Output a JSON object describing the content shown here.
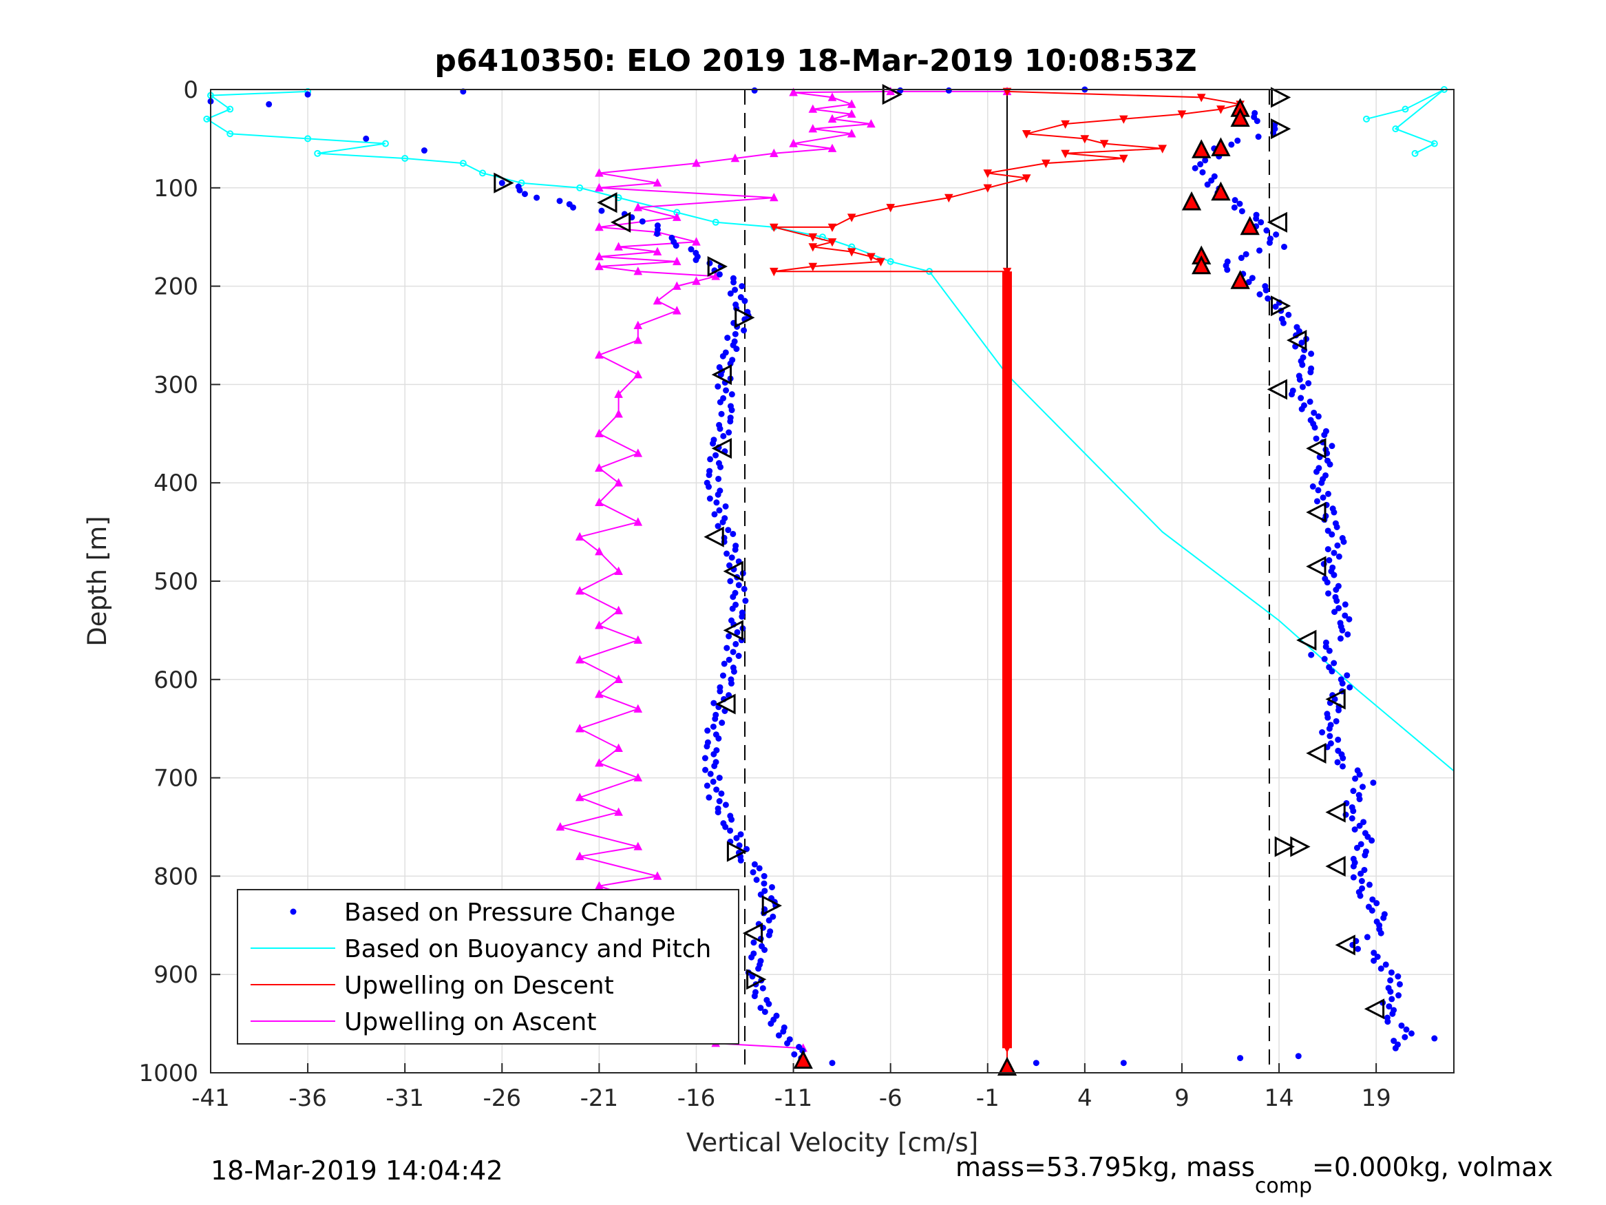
{
  "chart_data": {
    "type": "scatter",
    "title": "p6410350: ELO 2019 18-Mar-2019 10:08:53Z",
    "xlabel": "Vertical Velocity [cm/s]",
    "ylabel": "Depth [m]",
    "xlim": [
      -41,
      23
    ],
    "ylim": [
      0,
      1000
    ],
    "y_reversed": true,
    "grid": true,
    "xticks": [
      -41,
      -36,
      -31,
      -26,
      -21,
      -16,
      -11,
      -6,
      -1,
      4,
      9,
      14,
      19
    ],
    "xtick_labels": [
      "-41",
      "-36",
      "-31",
      "-26",
      "-21",
      "-16",
      "-11",
      "-6",
      "-1",
      "4",
      "9",
      "14",
      "19"
    ],
    "yticks": [
      0,
      100,
      200,
      300,
      400,
      500,
      600,
      700,
      800,
      900,
      1000
    ],
    "ytick_labels": [
      "0",
      "100",
      "200",
      "300",
      "400",
      "500",
      "600",
      "700",
      "800",
      "900",
      "1000"
    ],
    "vlines": [
      {
        "x": -13.5,
        "style": "dashed",
        "color": "#000000"
      },
      {
        "x": 13.5,
        "style": "dashed",
        "color": "#000000"
      },
      {
        "x": 0,
        "style": "solid",
        "color": "#000000"
      }
    ],
    "legend_placement": "lower-left",
    "series": [
      {
        "name": "Based on Pressure Change",
        "style": "dots",
        "color": "#0000ff",
        "descent": [
          [
            -26,
            95
          ],
          [
            -24,
            110
          ],
          [
            -22,
            120
          ],
          [
            -19,
            130
          ],
          [
            -17,
            155
          ],
          [
            -16,
            170
          ],
          [
            -15,
            180
          ],
          [
            -14,
            200
          ],
          [
            -13.6,
            230
          ],
          [
            -14.2,
            260
          ],
          [
            -14.6,
            290
          ],
          [
            -14.4,
            330
          ],
          [
            -14.8,
            360
          ],
          [
            -15.2,
            400
          ],
          [
            -14.6,
            440
          ],
          [
            -14,
            480
          ],
          [
            -13.8,
            520
          ],
          [
            -14,
            560
          ],
          [
            -14.4,
            600
          ],
          [
            -15,
            640
          ],
          [
            -15.3,
            680
          ],
          [
            -15,
            720
          ],
          [
            -14.2,
            750
          ],
          [
            -13.6,
            780
          ],
          [
            -12.6,
            800
          ],
          [
            -12.2,
            830
          ],
          [
            -12.6,
            860
          ],
          [
            -13,
            890
          ],
          [
            -13,
            910
          ],
          [
            -12,
            950
          ],
          [
            -11,
            970
          ],
          [
            -10.6,
            985
          ]
        ],
        "ascent": [
          [
            12,
            20
          ],
          [
            14,
            40
          ],
          [
            11,
            60
          ],
          [
            10,
            80
          ],
          [
            11,
            105
          ],
          [
            13,
            135
          ],
          [
            14,
            160
          ],
          [
            11,
            175
          ],
          [
            13,
            200
          ],
          [
            14,
            225
          ],
          [
            15,
            250
          ],
          [
            15.5,
            280
          ],
          [
            15,
            310
          ],
          [
            16,
            340
          ],
          [
            16.5,
            370
          ],
          [
            16,
            400
          ],
          [
            16.5,
            430
          ],
          [
            17,
            460
          ],
          [
            16.5,
            490
          ],
          [
            17,
            520
          ],
          [
            17.5,
            550
          ],
          [
            16,
            575
          ],
          [
            17.5,
            600
          ],
          [
            17,
            620
          ],
          [
            16.5,
            650
          ],
          [
            17,
            680
          ],
          [
            18.5,
            705
          ],
          [
            17.5,
            730
          ],
          [
            18.5,
            760
          ],
          [
            18,
            790
          ],
          [
            18.5,
            820
          ],
          [
            19.5,
            850
          ],
          [
            18,
            870
          ],
          [
            19.5,
            890
          ],
          [
            20,
            910
          ],
          [
            19.5,
            940
          ],
          [
            20.5,
            960
          ],
          [
            20,
            975
          ]
        ],
        "surface": [
          [
            -41,
            12
          ],
          [
            -38,
            15
          ],
          [
            -36,
            5
          ],
          [
            -33,
            50
          ],
          [
            -30,
            62
          ],
          [
            -28,
            2
          ],
          [
            -13,
            1
          ],
          [
            -5.5,
            1
          ],
          [
            -3,
            1
          ],
          [
            4,
            0
          ],
          [
            -9,
            990
          ],
          [
            1.5,
            990
          ],
          [
            6,
            990
          ],
          [
            12,
            985
          ],
          [
            15,
            983
          ],
          [
            22,
            965
          ]
        ]
      },
      {
        "name": "Based on Buoyancy and Pitch",
        "style": "line-circles",
        "color": "#00ffff",
        "points": [
          [
            -36,
            2
          ],
          [
            -41,
            6
          ],
          [
            -40,
            20
          ],
          [
            -41.2,
            30
          ],
          [
            -40,
            45
          ],
          [
            -36,
            50
          ],
          [
            -32,
            55
          ],
          [
            -35.5,
            65
          ],
          [
            -31,
            70
          ],
          [
            -28,
            75
          ],
          [
            -27,
            85
          ],
          [
            -25,
            95
          ],
          [
            -22,
            100
          ],
          [
            -20,
            110
          ],
          [
            -17,
            125
          ],
          [
            -15,
            135
          ],
          [
            -12,
            140
          ],
          [
            -9.5,
            150
          ],
          [
            -8,
            160
          ],
          [
            -6,
            175
          ],
          [
            -4,
            185
          ],
          [
            0,
            290
          ],
          [
            8,
            450
          ],
          [
            14,
            540
          ],
          [
            18,
            610
          ],
          [
            23,
            693
          ]
        ],
        "surface_points": [
          [
            18.5,
            30
          ],
          [
            20.5,
            20
          ],
          [
            22.5,
            0
          ],
          [
            20,
            40
          ],
          [
            22,
            55
          ],
          [
            21,
            65
          ]
        ]
      },
      {
        "name": "Upwelling on Descent",
        "style": "line-down-triangles",
        "color": "#ff0000",
        "points": [
          [
            0,
            2
          ],
          [
            10,
            8
          ],
          [
            12,
            15
          ],
          [
            11,
            20
          ],
          [
            9,
            25
          ],
          [
            6,
            30
          ],
          [
            3,
            35
          ],
          [
            1,
            45
          ],
          [
            4,
            50
          ],
          [
            5,
            55
          ],
          [
            8,
            60
          ],
          [
            3,
            65
          ],
          [
            6,
            70
          ],
          [
            2,
            75
          ],
          [
            -1,
            85
          ],
          [
            1,
            90
          ],
          [
            -1,
            100
          ],
          [
            -3,
            110
          ],
          [
            -6,
            120
          ],
          [
            -8,
            130
          ],
          [
            -9,
            140
          ],
          [
            -12,
            140
          ],
          [
            -10,
            150
          ],
          [
            -9,
            155
          ],
          [
            -10,
            160
          ],
          [
            -8,
            165
          ],
          [
            -7,
            170
          ],
          [
            -6.5,
            175
          ],
          [
            -10,
            180
          ],
          [
            -12,
            185
          ],
          [
            0,
            185
          ],
          [
            0,
            975
          ],
          [
            0,
            995
          ]
        ]
      },
      {
        "name": "Upwelling on Ascent",
        "style": "line-up-triangles",
        "color": "#ff00ff",
        "points": [
          [
            -10.5,
            975
          ],
          [
            -15,
            970
          ],
          [
            -18,
            960
          ],
          [
            -16,
            950
          ],
          [
            -18,
            940
          ],
          [
            -21,
            930
          ],
          [
            -19,
            920
          ],
          [
            -22,
            900
          ],
          [
            -19,
            890
          ],
          [
            -24,
            870
          ],
          [
            -20,
            860
          ],
          [
            -22,
            840
          ],
          [
            -18,
            830
          ],
          [
            -21,
            810
          ],
          [
            -18,
            800
          ],
          [
            -22,
            780
          ],
          [
            -19,
            770
          ],
          [
            -23,
            750
          ],
          [
            -20,
            735
          ],
          [
            -22,
            720
          ],
          [
            -19,
            700
          ],
          [
            -21,
            685
          ],
          [
            -20,
            670
          ],
          [
            -22,
            650
          ],
          [
            -19,
            630
          ],
          [
            -21,
            615
          ],
          [
            -20,
            600
          ],
          [
            -22,
            580
          ],
          [
            -19,
            560
          ],
          [
            -21,
            545
          ],
          [
            -20,
            530
          ],
          [
            -22,
            510
          ],
          [
            -20,
            490
          ],
          [
            -21,
            470
          ],
          [
            -22,
            455
          ],
          [
            -19,
            440
          ],
          [
            -21,
            420
          ],
          [
            -20,
            400
          ],
          [
            -21,
            385
          ],
          [
            -19,
            370
          ],
          [
            -21,
            350
          ],
          [
            -20,
            330
          ],
          [
            -20,
            310
          ],
          [
            -19,
            290
          ],
          [
            -21,
            270
          ],
          [
            -19,
            255
          ],
          [
            -19,
            240
          ],
          [
            -17,
            225
          ],
          [
            -18,
            215
          ],
          [
            -17,
            200
          ],
          [
            -16,
            195
          ],
          [
            -15,
            190
          ],
          [
            -19,
            185
          ],
          [
            -21,
            180
          ],
          [
            -17,
            175
          ],
          [
            -21,
            170
          ],
          [
            -18,
            165
          ],
          [
            -20,
            160
          ],
          [
            -16,
            155
          ],
          [
            -18,
            145
          ],
          [
            -21,
            140
          ],
          [
            -17,
            130
          ],
          [
            -19,
            120
          ],
          [
            -12,
            110
          ],
          [
            -21,
            100
          ],
          [
            -18,
            95
          ],
          [
            -21,
            85
          ],
          [
            -16,
            75
          ],
          [
            -14,
            70
          ],
          [
            -12,
            65
          ],
          [
            -9,
            60
          ],
          [
            -11,
            55
          ],
          [
            -8,
            45
          ],
          [
            -10,
            40
          ],
          [
            -7,
            35
          ],
          [
            -9,
            30
          ],
          [
            -8,
            25
          ],
          [
            -10,
            20
          ],
          [
            -8,
            15
          ],
          [
            -9,
            8
          ],
          [
            -11,
            3
          ],
          [
            -6,
            2
          ],
          [
            0,
            2
          ]
        ]
      }
    ],
    "markers": {
      "descent_triangles_right": [
        [
          -26,
          95
        ],
        [
          -15,
          180
        ],
        [
          -13.6,
          232
        ],
        [
          -12.2,
          830
        ],
        [
          -13,
          905
        ],
        [
          -6,
          5
        ],
        [
          14,
          8
        ],
        [
          14,
          40
        ],
        [
          14,
          220
        ],
        [
          14.2,
          770
        ],
        [
          15,
          770
        ],
        [
          -14,
          775
        ]
      ],
      "descent_triangles_left": [
        [
          -20.5,
          115
        ],
        [
          -19.8,
          135
        ],
        [
          -14.6,
          290
        ],
        [
          -14.6,
          365
        ],
        [
          -15,
          455
        ],
        [
          -14,
          490
        ],
        [
          -14,
          550
        ],
        [
          -14.4,
          625
        ],
        [
          -13,
          858
        ],
        [
          14,
          135
        ],
        [
          15,
          255
        ],
        [
          14,
          305
        ],
        [
          16,
          365
        ],
        [
          16,
          430
        ],
        [
          16,
          485
        ],
        [
          15.5,
          560
        ],
        [
          17,
          620
        ],
        [
          16,
          675
        ],
        [
          17,
          735
        ],
        [
          17,
          790
        ],
        [
          17.5,
          870
        ],
        [
          19,
          935
        ]
      ],
      "red_triangles": [
        [
          12,
          20
        ],
        [
          12,
          30
        ],
        [
          11,
          60
        ],
        [
          10,
          62
        ],
        [
          11,
          105
        ],
        [
          9.5,
          115
        ],
        [
          12.5,
          140
        ],
        [
          10,
          170
        ],
        [
          10,
          180
        ],
        [
          12,
          195
        ],
        [
          -10.5,
          988
        ],
        [
          0,
          995
        ]
      ]
    }
  },
  "legend": {
    "items": [
      "Based on Pressure Change",
      "Based on Buoyancy and Pitch",
      "Upwelling on Descent",
      "Upwelling on Ascent"
    ]
  },
  "footer": {
    "left": "18-Mar-2019 14:04:42",
    "right_prefix": "mass=53.795kg, mass",
    "right_sub": "comp",
    "right_suffix": "=0.000kg, volmax"
  },
  "colors": {
    "pressure": "#0000ff",
    "buoyancy": "#00ffff",
    "descent": "#ff0000",
    "ascent": "#ff00ff",
    "grid": "#dfdfdf",
    "axes": "#262626"
  }
}
